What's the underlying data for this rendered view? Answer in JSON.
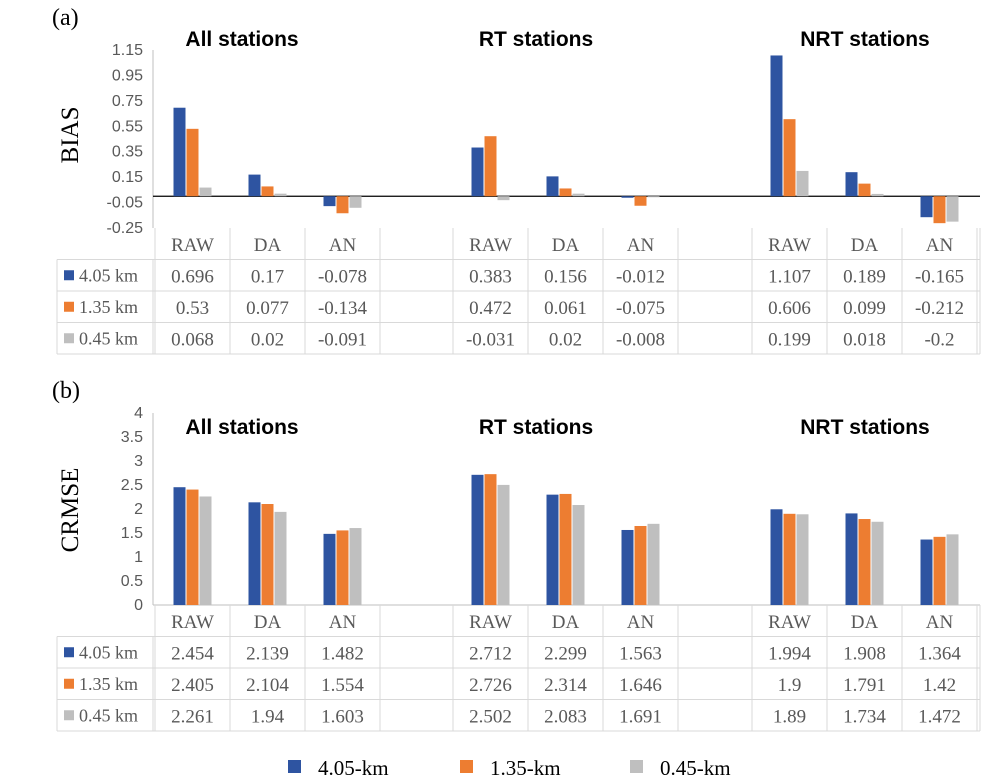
{
  "chart_data": [
    {
      "panel": "(a)",
      "type": "bar",
      "ylabel": "BIAS",
      "ylim": [
        -0.25,
        1.15
      ],
      "yticks": [
        "1.15",
        "0.95",
        "0.75",
        "0.55",
        "0.35",
        "0.15",
        "-0.05",
        "-0.25"
      ],
      "groups": [
        {
          "title": "All stations",
          "categories": [
            "RAW",
            "DA",
            "AN"
          ],
          "series": [
            {
              "name": "4.05 km",
              "values": [
                "0.696",
                "0.17",
                "-0.078"
              ]
            },
            {
              "name": "1.35 km",
              "values": [
                "0.53",
                "0.077",
                "-0.134"
              ]
            },
            {
              "name": "0.45 km",
              "values": [
                "0.068",
                "0.02",
                "-0.091"
              ]
            }
          ]
        },
        {
          "title": "RT stations",
          "categories": [
            "RAW",
            "DA",
            "AN"
          ],
          "series": [
            {
              "name": "4.05 km",
              "values": [
                "0.383",
                "0.156",
                "-0.012"
              ]
            },
            {
              "name": "1.35 km",
              "values": [
                "0.472",
                "0.061",
                "-0.075"
              ]
            },
            {
              "name": "0.45 km",
              "values": [
                "-0.031",
                "0.02",
                "-0.008"
              ]
            }
          ]
        },
        {
          "title": "NRT stations",
          "categories": [
            "RAW",
            "DA",
            "AN"
          ],
          "series": [
            {
              "name": "4.05 km",
              "values": [
                "1.107",
                "0.189",
                "-0.165"
              ]
            },
            {
              "name": "1.35 km",
              "values": [
                "0.606",
                "0.099",
                "-0.212"
              ]
            },
            {
              "name": "0.45 km",
              "values": [
                "0.199",
                "0.018",
                "-0.2"
              ]
            }
          ]
        }
      ]
    },
    {
      "panel": "(b)",
      "type": "bar",
      "ylabel": "CRMSE",
      "ylim": [
        0,
        4
      ],
      "yticks": [
        "4",
        "3.5",
        "3",
        "2.5",
        "2",
        "1.5",
        "1",
        "0.5",
        "0"
      ],
      "groups": [
        {
          "title": "All stations",
          "categories": [
            "RAW",
            "DA",
            "AN"
          ],
          "series": [
            {
              "name": "4.05 km",
              "values": [
                "2.454",
                "2.139",
                "1.482"
              ]
            },
            {
              "name": "1.35 km",
              "values": [
                "2.405",
                "2.104",
                "1.554"
              ]
            },
            {
              "name": "0.45 km",
              "values": [
                "2.261",
                "1.94",
                "1.603"
              ]
            }
          ]
        },
        {
          "title": "RT stations",
          "categories": [
            "RAW",
            "DA",
            "AN"
          ],
          "series": [
            {
              "name": "4.05 km",
              "values": [
                "2.712",
                "2.299",
                "1.563"
              ]
            },
            {
              "name": "1.35 km",
              "values": [
                "2.726",
                "2.314",
                "1.646"
              ]
            },
            {
              "name": "0.45 km",
              "values": [
                "2.502",
                "2.083",
                "1.691"
              ]
            }
          ]
        },
        {
          "title": "NRT stations",
          "categories": [
            "RAW",
            "DA",
            "AN"
          ],
          "series": [
            {
              "name": "4.05 km",
              "values": [
                "1.994",
                "1.908",
                "1.364"
              ]
            },
            {
              "name": "1.35 km",
              "values": [
                "1.9",
                "1.791",
                "1.42"
              ]
            },
            {
              "name": "0.45 km",
              "values": [
                "1.89",
                "1.734",
                "1.472"
              ]
            }
          ]
        }
      ]
    }
  ],
  "colors": [
    "#2e54a1",
    "#ed7d31",
    "#bfbfbf"
  ],
  "legend": [
    "4.05-km",
    "1.35-km",
    "0.45-km"
  ]
}
